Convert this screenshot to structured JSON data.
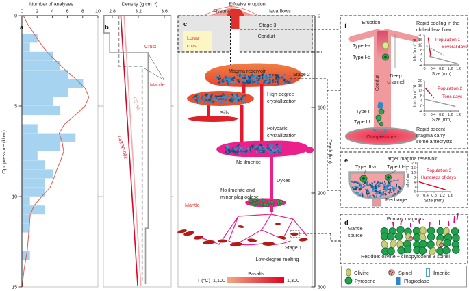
{
  "panel_a": {
    "label": "a"
  },
  "panel_b": {
    "label": "b"
  },
  "panel_c": {
    "label": "c",
    "top_title": "Effusive eruption",
    "fissure": "Fissure",
    "lava_flows": "lava flows",
    "stage3": "Stage 3",
    "conduit": "Conduit",
    "lunar_crust": [
      "Lunar",
      "crust"
    ],
    "magma_reservoir": "Magma reservoir",
    "stage2": "Stage 2",
    "high_degree": [
      "High-degree",
      "crystallization"
    ],
    "sills": "Sills",
    "polybaric": [
      "Polybaric",
      "crystallization"
    ],
    "no_ilmenite": "No ilmenite",
    "dykes": "Dykes",
    "no_ilmenite_plag": [
      "No ilmenite and",
      "minor plagioclase"
    ],
    "mantle": "Mantle",
    "stage1": "Stage 1",
    "low_degree": "Low-degree melting",
    "scale": {
      "title": "Basalts",
      "t_label": "T (°C)",
      "min": "1,100",
      "max": "1,300"
    }
  },
  "depth_axis": {
    "label": "Depth (km)",
    "ticks": [
      "0",
      "100",
      "200",
      "300"
    ]
  },
  "panel_f": {
    "label": "f",
    "eruption": "Eruption",
    "type_ia": "Type I-a",
    "type_ib": "Type I-b",
    "deep_channel": [
      "Deep",
      "channel"
    ],
    "conduit": "Conduit",
    "type_ii": "Type II",
    "type_iii": "Type III",
    "overpressure": "Overpressure",
    "rapid_cooling": [
      "Rapid cooling in the",
      "chilled lava flow"
    ],
    "rapid_ascent": [
      "Rapid ascent",
      "magma carry",
      "some antecrysts"
    ]
  },
  "panel_e": {
    "label": "e",
    "title": "Larger magma reservoir",
    "type_iiia": "Type III-a",
    "type_iiib": "Type III-b",
    "recharge": "Recharge"
  },
  "panel_d": {
    "label": "d",
    "title": "Primary magmas",
    "mantle_source": [
      "Mantle",
      "source"
    ],
    "residue": "Residue: olivine + clinopyroxene ± spinel"
  },
  "legend": {
    "items": [
      {
        "name": "Olivine",
        "icon": "olivine-ellipse",
        "color": "#c9cd7f"
      },
      {
        "name": "Spinel",
        "icon": "spinel-circle",
        "color": "#dca39b"
      },
      {
        "name": "Ilmenite",
        "icon": "ilmenite-rect",
        "color": "#ffffff"
      },
      {
        "name": "Pyroxene",
        "icon": "pyroxene-circle",
        "color": "#22a14f"
      },
      {
        "name": "Plagioclase",
        "icon": "plagioclase-rect",
        "color": "#2f86c8"
      }
    ]
  },
  "colors": {
    "histogram_fill": "#a6d3ef",
    "kde_red": "#e2574e",
    "accent_red": "#e8312a",
    "sample_red": "#e50021",
    "sample_pink": "#f5a9ab",
    "gray_line": "#9a9a9a",
    "magenta": "#ec1f8b",
    "dyke_red": "#e3192c",
    "blob_red": "#b01b15",
    "ilmenite_blue": "#2f86c8",
    "pyroxene_green": "#22a14f",
    "olivine_green": "#c9cd7f",
    "crust_gray": "#e5e5e5",
    "lunar_yellow": "#fcf6c5",
    "conduit_pink": "#f09a9e",
    "t_gradient_min": "#f2a987",
    "t_gradient_max": "#e50021"
  },
  "chart_data": [
    {
      "id": "cpx-pressure-histogram",
      "type": "bar",
      "orientation": "horizontal",
      "xlabel": "Number of analyses",
      "ylabel": "Cpx pressure (kbar)",
      "xlim": [
        0,
        10
      ],
      "ylim": [
        0,
        15
      ],
      "x_ticks": [
        0,
        2,
        4,
        6,
        8,
        10
      ],
      "y_ticks": [
        0,
        5,
        10,
        15
      ],
      "bar_color": "#a6d3ef",
      "bin_width_kbar": 0.5,
      "bins": [
        [
          1.0,
          2
        ],
        [
          1.5,
          1
        ],
        [
          2.0,
          4
        ],
        [
          2.5,
          5
        ],
        [
          3.0,
          6
        ],
        [
          3.5,
          8
        ],
        [
          4.0,
          6
        ],
        [
          4.5,
          4
        ],
        [
          5.0,
          5
        ],
        [
          6.0,
          2
        ],
        [
          6.5,
          7
        ],
        [
          7.0,
          5
        ],
        [
          7.5,
          2
        ],
        [
          8.0,
          3
        ],
        [
          8.5,
          4
        ],
        [
          9.0,
          3
        ],
        [
          9.5,
          3
        ],
        [
          10.0,
          1
        ],
        [
          10.5,
          3
        ],
        [
          11.0,
          1
        ],
        [
          11.5,
          1
        ],
        [
          13.0,
          1
        ]
      ],
      "kde": {
        "color": "#e2574e",
        "points": [
          [
            0,
            0.2
          ],
          [
            0.5,
            0.8
          ],
          [
            1,
            1.6
          ],
          [
            1.5,
            2.4
          ],
          [
            2,
            3.3
          ],
          [
            2.5,
            4.5
          ],
          [
            3,
            5.7
          ],
          [
            3.5,
            7.1
          ],
          [
            4,
            8.3
          ],
          [
            4.5,
            8.8
          ],
          [
            5,
            8.3
          ],
          [
            5.5,
            7.0
          ],
          [
            6,
            5.6
          ],
          [
            6.5,
            4.9
          ],
          [
            7,
            5.3
          ],
          [
            7.5,
            5.5
          ],
          [
            8,
            5.1
          ],
          [
            8.5,
            4.6
          ],
          [
            9,
            4.2
          ],
          [
            9.5,
            3.7
          ],
          [
            10,
            2.6
          ],
          [
            10.5,
            1.6
          ],
          [
            11,
            1.1
          ],
          [
            11.5,
            1.0
          ],
          [
            12,
            0.9
          ],
          [
            12.5,
            0.8
          ],
          [
            13,
            0.7
          ],
          [
            13.5,
            0.5
          ],
          [
            14,
            0.3
          ],
          [
            14.5,
            0.15
          ],
          [
            15,
            0.05
          ]
        ]
      }
    },
    {
      "id": "density-depth-profiles",
      "type": "line",
      "xlabel": "Density (g cm⁻³)",
      "ylabel_shared": "Depth (km)",
      "xlim": [
        2.7,
        3.7
      ],
      "x_ticks": [
        2.8,
        3.2,
        3.6
      ],
      "ylim_km": [
        0,
        300
      ],
      "series": [
        {
          "name": "Crust",
          "color": "#9a9a9a",
          "style": "solid",
          "points": [
            [
              2.67,
              0
            ],
            [
              2.67,
              19
            ],
            [
              2.76,
              19
            ],
            [
              2.76,
              41
            ],
            [
              3.35,
              41
            ],
            [
              3.35,
              235
            ],
            [
              3.31,
              235
            ],
            [
              3.31,
              297
            ]
          ]
        },
        {
          "name": "Mantle",
          "color": "#9a9a9a",
          "style": "dashed",
          "points": [
            [
              2.9,
              0
            ],
            [
              2.9,
              56
            ],
            [
              3.26,
              56
            ],
            [
              3.26,
              293
            ]
          ]
        },
        {
          "name": "042GP-002",
          "color": "#e50021",
          "style": "solid",
          "points": [
            [
              2.93,
              0
            ],
            [
              3.19,
              299
            ]
          ]
        },
        {
          "name": "CE-5A",
          "color": "#f5a9ab",
          "style": "solid",
          "points": [
            [
              2.98,
              0
            ],
            [
              3.24,
              299
            ]
          ]
        }
      ]
    },
    {
      "id": "csd-population-1",
      "type": "line",
      "context": "Rapid cooling in the chilled lava flow",
      "xlabel": "Size (mm)",
      "ylabel": "ln[n (mm⁻⁴)]",
      "xlim": [
        0,
        1.6
      ],
      "ylim": [
        -4,
        20
      ],
      "x_ticks": [
        0,
        0.4,
        0.8,
        1.2,
        1.6
      ],
      "y_ticks": [
        20,
        16,
        12,
        8,
        4,
        0,
        -4
      ],
      "series": [
        {
          "name": "Population 1",
          "annotation": "Several days",
          "color": "#e50021",
          "style": "solid",
          "points": [
            [
              0.17,
              18
            ],
            [
              0.3,
              1.5
            ]
          ]
        },
        {
          "name": "trend-dashed",
          "annotation": "",
          "color": "#9a9a9a",
          "style": "dashed",
          "points": [
            [
              0.08,
              11.5
            ],
            [
              0.95,
              3.2
            ]
          ]
        },
        {
          "name": "trend-solid",
          "annotation": "",
          "color": "#9a9a9a",
          "style": "solid",
          "points": [
            [
              0.2,
              3.2
            ],
            [
              1.55,
              -3.0
            ]
          ]
        }
      ]
    },
    {
      "id": "csd-population-2",
      "type": "line",
      "context": "Rapid ascent magma carry some antecrysts",
      "xlabel": "Size (mm)",
      "ylabel": "ln[n (mm⁻⁴)]",
      "xlim": [
        0,
        1.6
      ],
      "ylim": [
        -4,
        20
      ],
      "x_ticks": [
        0,
        0.4,
        0.8,
        1.2,
        1.6
      ],
      "y_ticks": [
        20,
        16,
        12,
        8,
        4,
        0,
        -4
      ],
      "series": [
        {
          "name": "Population 2",
          "annotation": "Tens days",
          "color": "#e50021",
          "style": "dashed",
          "points": [
            [
              0.05,
              14
            ],
            [
              0.45,
              6
            ]
          ]
        },
        {
          "name": "trend-solid",
          "annotation": "",
          "color": "#9a9a9a",
          "style": "solid",
          "points": [
            [
              0.02,
              5.3
            ],
            [
              1.45,
              -0.5
            ]
          ]
        }
      ]
    },
    {
      "id": "csd-population-3",
      "type": "line",
      "context": "Larger magma reservoir",
      "xlabel": "Size (mm)",
      "ylabel": "ln[n (mm⁻⁴)]",
      "xlim": [
        0,
        1.6
      ],
      "ylim": [
        -4,
        20
      ],
      "x_ticks": [
        0,
        0.4,
        0.8,
        1.2,
        1.6
      ],
      "y_ticks": [
        20,
        16,
        12,
        8,
        4,
        0,
        -4
      ],
      "series": [
        {
          "name": "Population 3",
          "annotation": "Hundreds of days",
          "color": "#e50021",
          "style": "solid",
          "points": [
            [
              0.06,
              4.2
            ],
            [
              1.4,
              -2.5
            ]
          ]
        }
      ]
    }
  ]
}
